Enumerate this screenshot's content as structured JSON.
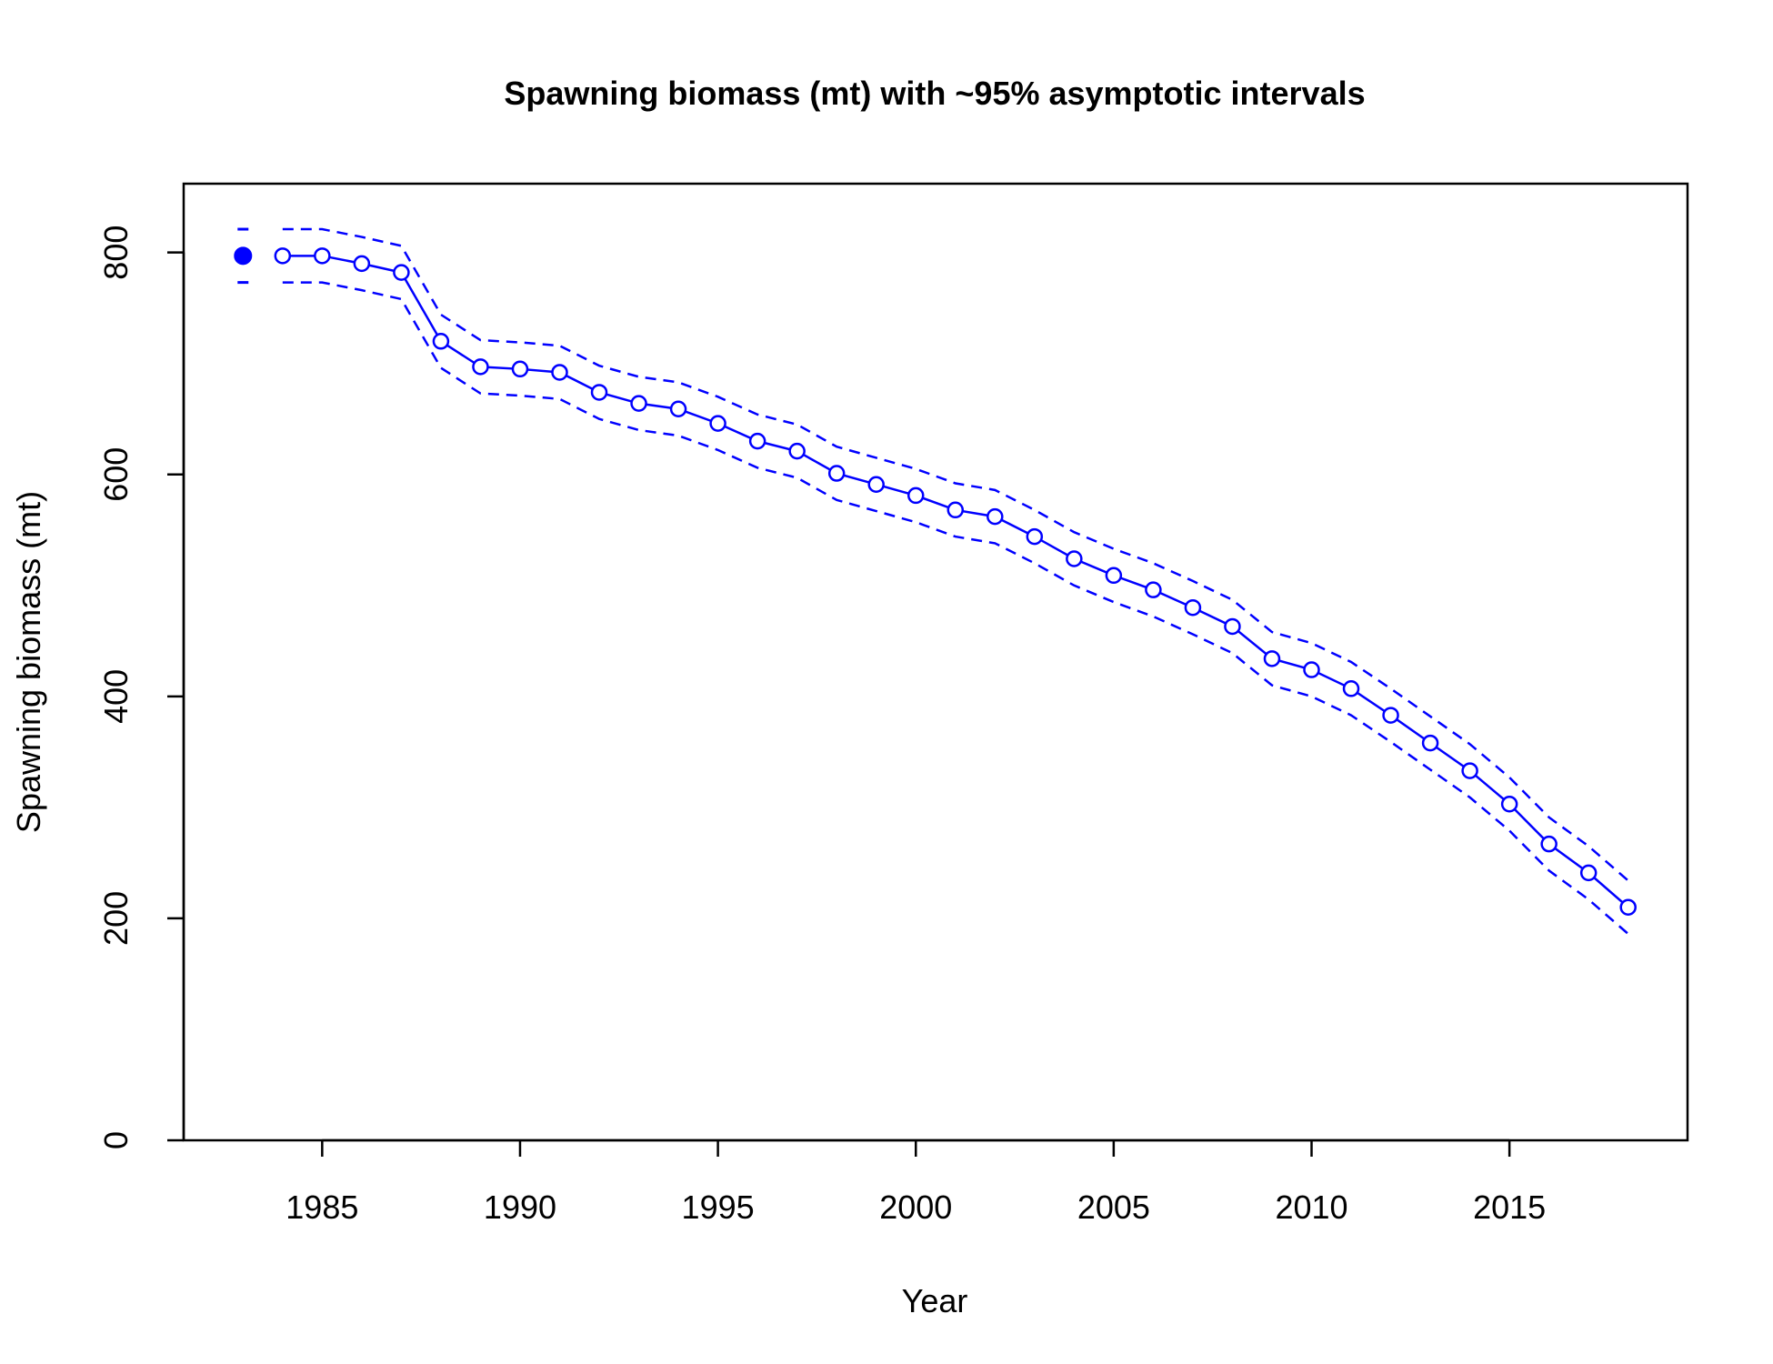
{
  "chart_data": {
    "type": "line",
    "title": "Spawning biomass (mt) with ~95% asymptotic intervals",
    "xlabel": "Year",
    "ylabel": "Spawning biomass (mt)",
    "xlim": [
      1981.5,
      2019.5
    ],
    "ylim": [
      0,
      862
    ],
    "x_ticks": [
      1985,
      1990,
      1995,
      2000,
      2005,
      2010,
      2015
    ],
    "y_ticks": [
      0,
      200,
      400,
      600,
      800
    ],
    "grid": false,
    "legend": "none",
    "color": "#0000ff",
    "virgin": {
      "x": 1983,
      "value": 797,
      "lower": 773,
      "upper": 821
    },
    "series": [
      {
        "x": [
          1984,
          1985,
          1986,
          1987,
          1988,
          1989,
          1990,
          1991,
          1992,
          1993,
          1994,
          1995,
          1996,
          1997,
          1998,
          1999,
          2000,
          2001,
          2002,
          2003,
          2004,
          2005,
          2006,
          2007,
          2008,
          2009,
          2010,
          2011,
          2012,
          2013,
          2014,
          2015,
          2016,
          2017,
          2018
        ],
        "values": [
          797,
          797,
          790,
          782,
          720,
          697,
          695,
          692,
          674,
          664,
          659,
          646,
          630,
          621,
          601,
          591,
          581,
          568,
          562,
          544,
          524,
          509,
          496,
          480,
          463,
          434,
          424,
          407,
          383,
          358,
          333,
          303,
          267,
          241,
          210
        ],
        "lower": [
          773,
          773,
          766,
          758,
          696,
          673,
          671,
          668,
          650,
          640,
          635,
          622,
          606,
          597,
          577,
          567,
          557,
          544,
          538,
          520,
          500,
          485,
          472,
          456,
          439,
          410,
          400,
          383,
          359,
          334,
          309,
          279,
          243,
          217,
          186
        ],
        "upper": [
          821,
          821,
          814,
          806,
          744,
          721,
          719,
          716,
          698,
          688,
          683,
          670,
          654,
          645,
          625,
          615,
          605,
          592,
          586,
          568,
          548,
          533,
          520,
          504,
          487,
          458,
          448,
          431,
          407,
          382,
          357,
          327,
          291,
          265,
          234
        ]
      }
    ]
  }
}
